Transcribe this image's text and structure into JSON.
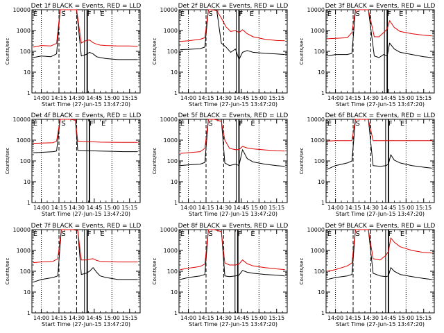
{
  "figure": {
    "xlabel_prefix": "Start Time",
    "xlabel_date": "(27-Jun-15 13:47:20)",
    "ylabel": "Counts/sec",
    "x_tick_labels": [
      "14:00",
      "14:15",
      "14:30",
      "14:45",
      "15:00",
      "15:15"
    ],
    "y_tick_labels": [
      "1",
      "10",
      "100",
      "1000",
      "10000"
    ],
    "colors": {
      "events": "#000000",
      "lld": "#e00000"
    }
  },
  "chart_data": [
    {
      "type": "line",
      "title": "Det 1f BLACK = Events, RED = LLD",
      "ylim": [
        1,
        10000
      ],
      "yscale": "log",
      "xlim": [
        "13:52",
        "15:24"
      ],
      "markers": [
        {
          "label": "E",
          "x": "13:53"
        },
        {
          "label": "S",
          "x": "14:17"
        },
        {
          "label": "F",
          "x": "14:39"
        },
        {
          "label": "E",
          "x": "14:50"
        }
      ],
      "series": [
        {
          "color": "#000000",
          "x": [
            "13:53",
            "14:00",
            "14:08",
            "14:13",
            "14:16",
            "14:19",
            "14:24",
            "14:30",
            "14:34",
            "14:38",
            "14:41",
            "14:44",
            "14:47",
            "14:50",
            "14:55",
            "15:05",
            "15:15",
            "15:22"
          ],
          "values": [
            50,
            60,
            55,
            75,
            10000,
            10000,
            10000,
            10000,
            60,
            70,
            90,
            75,
            55,
            50,
            45,
            40,
            40,
            40
          ]
        },
        {
          "color": "#e00000",
          "x": [
            "13:53",
            "14:00",
            "14:08",
            "14:13",
            "14:16",
            "14:19",
            "14:24",
            "14:30",
            "14:34",
            "14:38",
            "14:41",
            "14:44",
            "14:47",
            "14:50",
            "14:55",
            "15:05",
            "15:15",
            "15:22"
          ],
          "values": [
            160,
            190,
            180,
            240,
            10000,
            10000,
            10000,
            10000,
            250,
            330,
            350,
            260,
            220,
            200,
            190,
            180,
            180,
            175
          ]
        }
      ]
    },
    {
      "type": "line",
      "title": "Det 2f BLACK = Events, RED = LLD",
      "ylim": [
        1,
        10000
      ],
      "yscale": "log",
      "xlim": [
        "13:52",
        "15:24"
      ],
      "markers": [
        {
          "label": "E",
          "x": "13:53"
        },
        {
          "label": "S",
          "x": "14:17"
        },
        {
          "label": "F",
          "x": "14:43"
        },
        {
          "label": "E",
          "x": "14:52"
        }
      ],
      "series": [
        {
          "color": "#000000",
          "x": [
            "13:53",
            "14:00",
            "14:10",
            "14:14",
            "14:17",
            "14:20",
            "14:24",
            "14:28",
            "14:32",
            "14:36",
            "14:40",
            "14:43",
            "14:46",
            "14:50",
            "14:55",
            "15:05",
            "15:15",
            "15:22"
          ],
          "values": [
            120,
            125,
            135,
            160,
            10000,
            10000,
            10000,
            250,
            160,
            90,
            130,
            40,
            90,
            110,
            90,
            80,
            75,
            70
          ]
        },
        {
          "color": "#e00000",
          "x": [
            "13:53",
            "14:00",
            "14:10",
            "14:14",
            "14:17",
            "14:20",
            "14:24",
            "14:28",
            "14:32",
            "14:36",
            "14:40",
            "14:43",
            "14:46",
            "14:50",
            "14:55",
            "15:05",
            "15:15",
            "15:22"
          ],
          "values": [
            300,
            320,
            380,
            450,
            10000,
            10000,
            9000,
            4000,
            1500,
            900,
            1000,
            800,
            1100,
            700,
            500,
            380,
            330,
            320
          ]
        }
      ]
    },
    {
      "type": "line",
      "title": "Det 3f BLACK = Events, RED = LLD",
      "ylim": [
        1,
        10000
      ],
      "yscale": "log",
      "xlim": [
        "13:52",
        "15:24"
      ],
      "markers": [
        {
          "label": "E",
          "x": "13:53"
        },
        {
          "label": "S",
          "x": "14:17"
        },
        {
          "label": "F",
          "x": "14:44"
        },
        {
          "label": "E",
          "x": "14:54"
        }
      ],
      "series": [
        {
          "color": "#000000",
          "x": [
            "13:53",
            "14:00",
            "14:10",
            "14:14",
            "14:17",
            "14:28",
            "14:33",
            "14:37",
            "14:41",
            "14:44",
            "14:46",
            "14:50",
            "14:55",
            "15:05",
            "15:15",
            "15:22"
          ],
          "values": [
            60,
            70,
            70,
            80,
            10000,
            10000,
            60,
            50,
            70,
            60,
            250,
            130,
            90,
            70,
            55,
            50
          ]
        },
        {
          "color": "#e00000",
          "x": [
            "13:53",
            "14:00",
            "14:10",
            "14:14",
            "14:17",
            "14:28",
            "14:33",
            "14:37",
            "14:41",
            "14:44",
            "14:46",
            "14:50",
            "14:55",
            "15:05",
            "15:15",
            "15:22"
          ],
          "values": [
            400,
            420,
            450,
            800,
            10000,
            10000,
            500,
            500,
            800,
            1200,
            3000,
            1400,
            900,
            700,
            600,
            550
          ]
        }
      ]
    },
    {
      "type": "line",
      "title": "Det 4f BLACK = Events, RED = LLD",
      "ylim": [
        1,
        10000
      ],
      "yscale": "log",
      "xlim": [
        "13:52",
        "15:24"
      ],
      "markers": [
        {
          "label": "E",
          "x": "13:53"
        },
        {
          "label": "S",
          "x": "14:17"
        },
        {
          "label": "F",
          "x": "14:41"
        },
        {
          "label": "E",
          "x": "14:51"
        }
      ],
      "series": [
        {
          "color": "#000000",
          "x": [
            "13:53",
            "14:00",
            "14:10",
            "14:13",
            "14:16",
            "14:20",
            "14:25",
            "14:29",
            "14:31",
            "14:40",
            "14:50",
            "15:00",
            "15:10",
            "15:22"
          ],
          "values": [
            250,
            260,
            280,
            300,
            10000,
            10000,
            10000,
            9000,
            320,
            310,
            300,
            290,
            280,
            280
          ]
        },
        {
          "color": "#e00000",
          "x": [
            "13:53",
            "14:00",
            "14:10",
            "14:13",
            "14:16",
            "14:20",
            "14:25",
            "14:29",
            "14:31",
            "14:40",
            "14:50",
            "15:00",
            "15:10",
            "15:22"
          ],
          "values": [
            700,
            720,
            750,
            900,
            10000,
            10000,
            10000,
            9500,
            900,
            850,
            800,
            790,
            780,
            780
          ]
        }
      ]
    },
    {
      "type": "line",
      "title": "Det 5f BLACK = Events, RED = LLD",
      "ylim": [
        1,
        10000
      ],
      "yscale": "log",
      "xlim": [
        "13:52",
        "15:24"
      ],
      "markers": [
        {
          "label": "E",
          "x": "13:53"
        },
        {
          "label": "S",
          "x": "14:17"
        },
        {
          "label": "F",
          "x": "14:43"
        },
        {
          "label": "E",
          "x": "14:53"
        }
      ],
      "series": [
        {
          "color": "#000000",
          "x": [
            "13:53",
            "14:00",
            "14:10",
            "14:14",
            "14:17",
            "14:22",
            "14:28",
            "14:31",
            "14:35",
            "14:40",
            "14:43",
            "14:46",
            "14:50",
            "14:55",
            "15:05",
            "15:15",
            "15:22"
          ],
          "values": [
            60,
            65,
            70,
            85,
            10000,
            10000,
            10000,
            80,
            60,
            70,
            60,
            350,
            130,
            90,
            70,
            60,
            55
          ]
        },
        {
          "color": "#e00000",
          "x": [
            "13:53",
            "14:00",
            "14:10",
            "14:14",
            "14:17",
            "14:22",
            "14:28",
            "14:31",
            "14:35",
            "14:40",
            "14:43",
            "14:46",
            "14:50",
            "14:55",
            "15:05",
            "15:15",
            "15:22"
          ],
          "values": [
            230,
            250,
            280,
            400,
            10000,
            10000,
            8000,
            1000,
            400,
            350,
            350,
            500,
            420,
            380,
            340,
            310,
            300
          ]
        }
      ]
    },
    {
      "type": "line",
      "title": "Det 6f BLACK = Events, RED = LLD",
      "ylim": [
        1,
        10000
      ],
      "yscale": "log",
      "xlim": [
        "13:52",
        "15:24"
      ],
      "markers": [
        {
          "label": "E",
          "x": "13:53"
        },
        {
          "label": "S",
          "x": "14:17"
        },
        {
          "label": "F",
          "x": "14:45"
        },
        {
          "label": "E",
          "x": "14:55"
        }
      ],
      "series": [
        {
          "color": "#000000",
          "x": [
            "13:53",
            "14:00",
            "14:10",
            "14:14",
            "14:17",
            "14:28",
            "14:32",
            "14:38",
            "14:43",
            "14:45",
            "14:47",
            "14:50",
            "14:55",
            "15:05",
            "15:15",
            "15:22"
          ],
          "values": [
            40,
            60,
            80,
            100,
            10000,
            10000,
            60,
            55,
            60,
            70,
            200,
            110,
            80,
            60,
            50,
            45
          ]
        },
        {
          "color": "#e00000",
          "x": [
            "13:53",
            "14:00",
            "14:10",
            "14:14",
            "14:17",
            "14:28",
            "14:32",
            "14:38",
            "14:43",
            "14:45",
            "14:47",
            "14:50",
            "14:55",
            "15:05",
            "15:15",
            "15:22"
          ],
          "values": [
            900,
            950,
            950,
            950,
            10000,
            10000,
            950,
            950,
            950,
            950,
            950,
            950,
            950,
            950,
            950,
            950
          ]
        }
      ]
    },
    {
      "type": "line",
      "title": "Det 7f BLACK = Events, RED = LLD",
      "ylim": [
        1,
        10000
      ],
      "yscale": "log",
      "xlim": [
        "13:52",
        "15:24"
      ],
      "markers": [
        {
          "label": "E",
          "x": "13:53"
        },
        {
          "label": "S",
          "x": "14:17"
        },
        {
          "label": "F",
          "x": "14:39"
        },
        {
          "label": "E",
          "x": "14:50"
        }
      ],
      "series": [
        {
          "color": "#000000",
          "x": [
            "13:53",
            "14:00",
            "14:10",
            "14:14",
            "14:17",
            "14:22",
            "14:27",
            "14:31",
            "14:34",
            "14:38",
            "14:41",
            "14:44",
            "14:47",
            "14:50",
            "14:55",
            "15:05",
            "15:15",
            "15:22"
          ],
          "values": [
            30,
            40,
            50,
            60,
            10000,
            10000,
            10000,
            9000,
            70,
            80,
            100,
            150,
            90,
            60,
            50,
            40,
            40,
            40
          ]
        },
        {
          "color": "#e00000",
          "x": [
            "13:53",
            "14:00",
            "14:10",
            "14:14",
            "14:17",
            "14:22",
            "14:27",
            "14:31",
            "14:34",
            "14:38",
            "14:41",
            "14:44",
            "14:47",
            "14:50",
            "14:55",
            "15:05",
            "15:15",
            "15:22"
          ],
          "values": [
            260,
            280,
            300,
            400,
            10000,
            10000,
            10000,
            9000,
            350,
            350,
            380,
            400,
            330,
            300,
            290,
            280,
            280,
            280
          ]
        }
      ]
    },
    {
      "type": "line",
      "title": "Det 8f BLACK = Events, RED = LLD",
      "ylim": [
        1,
        10000
      ],
      "yscale": "log",
      "xlim": [
        "13:52",
        "15:24"
      ],
      "markers": [
        {
          "label": "E",
          "x": "13:53"
        },
        {
          "label": "S",
          "x": "14:17"
        },
        {
          "label": "F",
          "x": "14:42"
        },
        {
          "label": "E",
          "x": "14:53"
        }
      ],
      "series": [
        {
          "color": "#000000",
          "x": [
            "13:53",
            "14:00",
            "14:10",
            "14:14",
            "14:17",
            "14:22",
            "14:28",
            "14:31",
            "14:35",
            "14:40",
            "14:43",
            "14:46",
            "14:50",
            "14:55",
            "15:05",
            "15:15",
            "15:22"
          ],
          "values": [
            40,
            50,
            60,
            70,
            10000,
            10000,
            10000,
            60,
            55,
            60,
            65,
            110,
            90,
            80,
            70,
            65,
            60
          ]
        },
        {
          "color": "#e00000",
          "x": [
            "13:53",
            "14:00",
            "14:10",
            "14:14",
            "14:17",
            "14:22",
            "14:28",
            "14:31",
            "14:35",
            "14:40",
            "14:43",
            "14:46",
            "14:50",
            "14:55",
            "15:05",
            "15:15",
            "15:22"
          ],
          "values": [
            120,
            140,
            170,
            220,
            10000,
            10000,
            8000,
            250,
            200,
            200,
            220,
            350,
            230,
            180,
            150,
            130,
            120
          ]
        }
      ]
    },
    {
      "type": "line",
      "title": "Det 9f BLACK = Events, RED = LLD",
      "ylim": [
        1,
        10000
      ],
      "yscale": "log",
      "xlim": [
        "13:52",
        "15:24"
      ],
      "markers": [
        {
          "label": "E",
          "x": "13:53"
        },
        {
          "label": "S",
          "x": "14:17"
        },
        {
          "label": "F",
          "x": "14:45"
        },
        {
          "label": "E",
          "x": "14:55"
        }
      ],
      "series": [
        {
          "color": "#000000",
          "x": [
            "13:53",
            "14:00",
            "14:10",
            "14:14",
            "14:17",
            "14:28",
            "14:32",
            "14:38",
            "14:43",
            "14:45",
            "14:47",
            "14:50",
            "14:55",
            "15:05",
            "15:15",
            "15:22"
          ],
          "values": [
            40,
            50,
            60,
            70,
            10000,
            10000,
            80,
            60,
            55,
            60,
            150,
            100,
            70,
            55,
            45,
            40
          ]
        },
        {
          "color": "#e00000",
          "x": [
            "13:53",
            "14:00",
            "14:10",
            "14:14",
            "14:17",
            "14:28",
            "14:32",
            "14:38",
            "14:43",
            "14:45",
            "14:47",
            "14:50",
            "14:55",
            "15:05",
            "15:15",
            "15:22"
          ],
          "values": [
            100,
            120,
            180,
            250,
            10000,
            10000,
            400,
            350,
            600,
            900,
            4000,
            2500,
            1500,
            1000,
            800,
            750
          ]
        }
      ]
    }
  ]
}
